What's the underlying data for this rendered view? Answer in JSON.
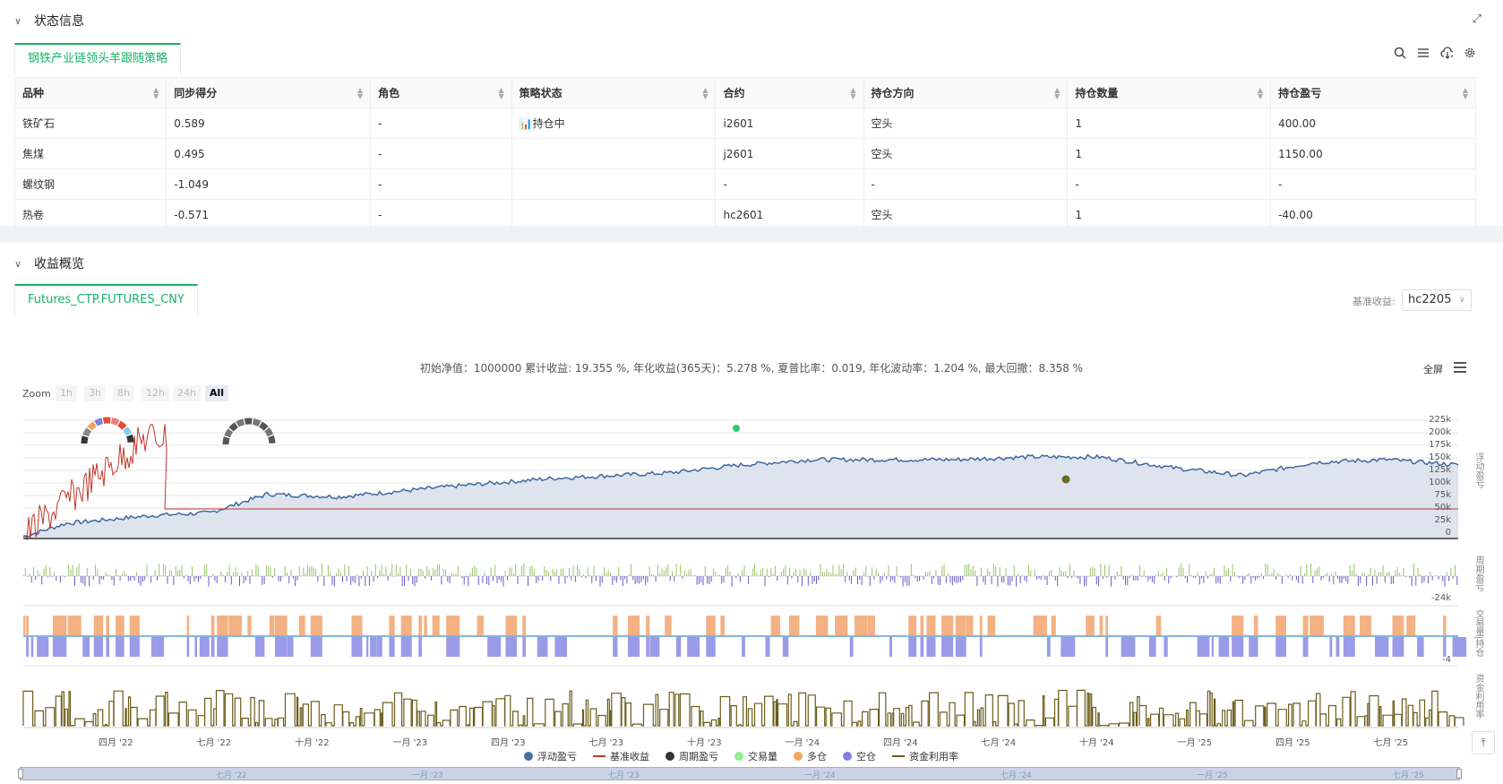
{
  "status": {
    "title": "状态信息",
    "tab": "钢铁产业链领头羊跟随策略",
    "columns": [
      "品种",
      "同步得分",
      "角色",
      "策略状态",
      "合约",
      "持仓方向",
      "持仓数量",
      "持仓盈亏"
    ],
    "rows": [
      [
        "铁矿石",
        "0.589",
        "-",
        "📊持仓中",
        "i2601",
        "空头",
        "1",
        "400.00"
      ],
      [
        "焦煤",
        "0.495",
        "-",
        "",
        "j2601",
        "空头",
        "1",
        "1150.00"
      ],
      [
        "螺纹钢",
        "-1.049",
        "-",
        "",
        "-",
        "-",
        "-",
        "-"
      ],
      [
        "热卷",
        "-0.571",
        "-",
        "",
        "hc2601",
        "空头",
        "1",
        "-40.00"
      ]
    ]
  },
  "overview": {
    "title": "收益概览",
    "tab": "Futures_CTP.FUTURES_CNY",
    "benchmark_label": "基准收益:",
    "benchmark_value": "hc2205",
    "summary": "初始净值：1000000 累计收益: 19.355 %, 年化收益(365天)：5.278 %, 夏普比率：0.019, 年化波动率：1.204 %, 最大回撤：8.358 %",
    "fullscreen": "全屏",
    "zoom_label": "Zoom",
    "zoom_options": [
      "1h",
      "3h",
      "8h",
      "12h",
      "24h",
      "All"
    ],
    "x_ticks": [
      "四月 '22",
      "七月 '22",
      "十月 '22",
      "一月 '23",
      "四月 '23",
      "七月 '23",
      "十月 '23",
      "一月 '24",
      "四月 '24",
      "七月 '24",
      "十月 '24",
      "一月 '25",
      "四月 '25",
      "七月 '25"
    ],
    "nav_ticks": [
      "七月 '22",
      "一月 '23",
      "七月 '23",
      "一月 '24",
      "七月 '24",
      "一月 '25",
      "七月 '25"
    ],
    "y_ticks": [
      "225k",
      "200k",
      "175k",
      "150k",
      "125k",
      "100k",
      "75k",
      "50k",
      "25k",
      "0"
    ],
    "pane_labels": [
      "浮动盈亏",
      "周期盈亏",
      "交易量|持仓",
      "资金利用率"
    ],
    "pane_ticks": [
      "-24k",
      "-4"
    ],
    "legend": [
      {
        "label": "浮动盈亏",
        "color": "#4a6fa5",
        "kind": "dot"
      },
      {
        "label": "基准收益",
        "color": "#c0392b",
        "kind": "line"
      },
      {
        "label": "周期盈亏",
        "color": "#333333",
        "kind": "dot"
      },
      {
        "label": "交易量",
        "color": "#90ee90",
        "kind": "dot"
      },
      {
        "label": "多仓",
        "color": "#f4a460",
        "kind": "dot"
      },
      {
        "label": "空仓",
        "color": "#8080e0",
        "kind": "dot"
      },
      {
        "label": "资金利用率",
        "color": "#6b5d1a",
        "kind": "line"
      }
    ]
  }
}
